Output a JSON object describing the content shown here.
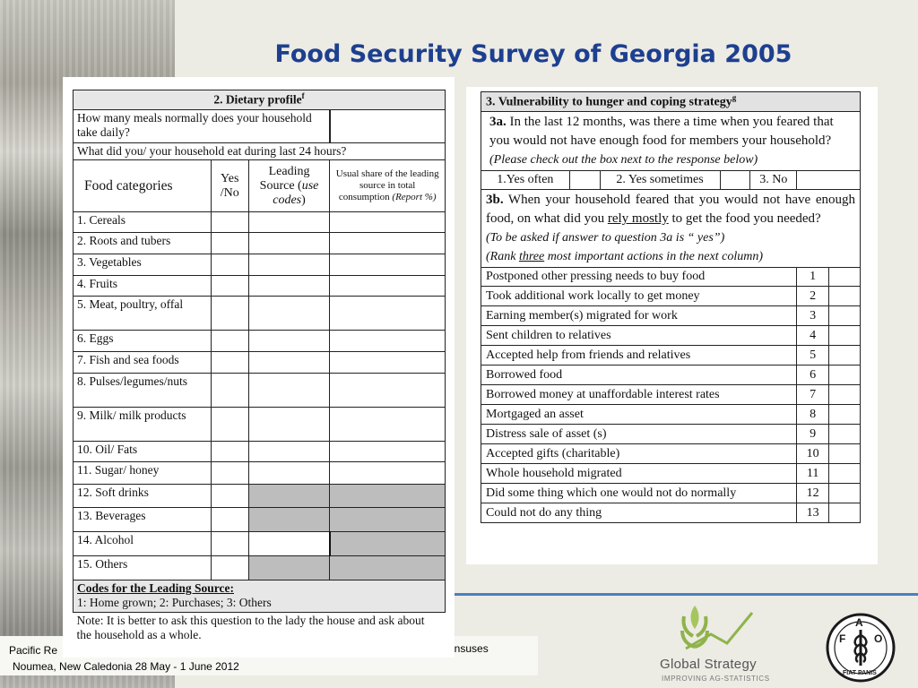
{
  "title": "Food Security Survey of Georgia 2005",
  "footer": {
    "line1": "Pacific Re",
    "line1_right": "ensuses",
    "line2": "Noumea, New Caledonia  28 May - 1 June 2012"
  },
  "logos": {
    "global_strategy": "Global Strategy",
    "global_strategy_sub": "IMPROVING AG-STATISTICS",
    "fao_icon": "fao-logo",
    "fao_text": {
      "F": "F",
      "A": "A",
      "O": "O",
      "fiat": "FIAT PANIS"
    }
  },
  "dietary": {
    "title": "2. Dietary profile",
    "title_sup": "f",
    "q_meals": "How many meals normally does your household take daily?",
    "q_24h": "What did you/ your household eat during last 24 hours?",
    "col_food": "Food categories",
    "col_yes": "Yes /No",
    "col_source_a": "Leading Source (",
    "col_source_b": "use codes",
    "col_source_c": ")",
    "col_share_a": "Usual share of the leading source in total consumption ",
    "col_share_b": "(Report  %)",
    "rows": [
      " 1. Cereals",
      "2. Roots and tubers",
      "3. Vegetables",
      "4. Fruits",
      "5. Meat, poultry, offal",
      "6. Eggs",
      "7. Fish and sea foods",
      "8. Pulses/legumes/nuts",
      "9.  Milk/ milk products",
      "10. Oil/ Fats",
      "11. Sugar/ honey",
      "12.  Soft drinks",
      "13. Beverages",
      "14. Alcohol",
      "15. Others"
    ],
    "codes_title": "Codes for the Leading Source:",
    "codes": "1: Home grown;  2: Purchases;  3: Others",
    "note": "Note: It is better to ask this question to the lady the house and ask about the household as a whole."
  },
  "vulnerability": {
    "title": "3. Vulnerability to hunger and coping strategy",
    "title_sup": "g",
    "q3a_label": "3a.",
    "q3a": " In the last 12 months, was there a time when you feared that you would not have enough food for members your household?",
    "q3a_hint": "(Please check out the box next to the response below)",
    "options": [
      "1.Yes often",
      "2. Yes sometimes",
      "3. No"
    ],
    "q3b_label": "3b.",
    "q3b_a": " When your household feared that you would not have enough food, on what did you ",
    "q3b_u": "rely mostly",
    "q3b_b": " to get the food you needed?",
    "q3b_hint1": "(To be asked if answer to question 3a is “ yes”)",
    "q3b_hint2a": "(Rank ",
    "q3b_hint2u": "three",
    "q3b_hint2b": " most important actions in the next column)",
    "actions": [
      {
        "label": "Postponed other pressing needs to buy food",
        "n": "1"
      },
      {
        "label": "Took additional work locally to get money",
        "n": "2"
      },
      {
        "label": "Earning member(s) migrated for work",
        "n": "3"
      },
      {
        "label": "Sent children to relatives",
        "n": "4"
      },
      {
        "label": "Accepted help from friends and relatives",
        "n": "5"
      },
      {
        "label": "Borrowed food",
        "n": "6"
      },
      {
        "label": "Borrowed money at unaffordable interest rates",
        "n": "7"
      },
      {
        "label": "Mortgaged an asset",
        "n": "8"
      },
      {
        "label": "Distress sale of asset (s)",
        "n": "9"
      },
      {
        "label": "Accepted gifts (charitable)",
        "n": "10"
      },
      {
        "label": "Whole household migrated",
        "n": "11"
      },
      {
        "label": "Did some thing which one would not do normally",
        "n": "12"
      },
      {
        "label": "Could not do any thing",
        "n": "13"
      }
    ]
  }
}
